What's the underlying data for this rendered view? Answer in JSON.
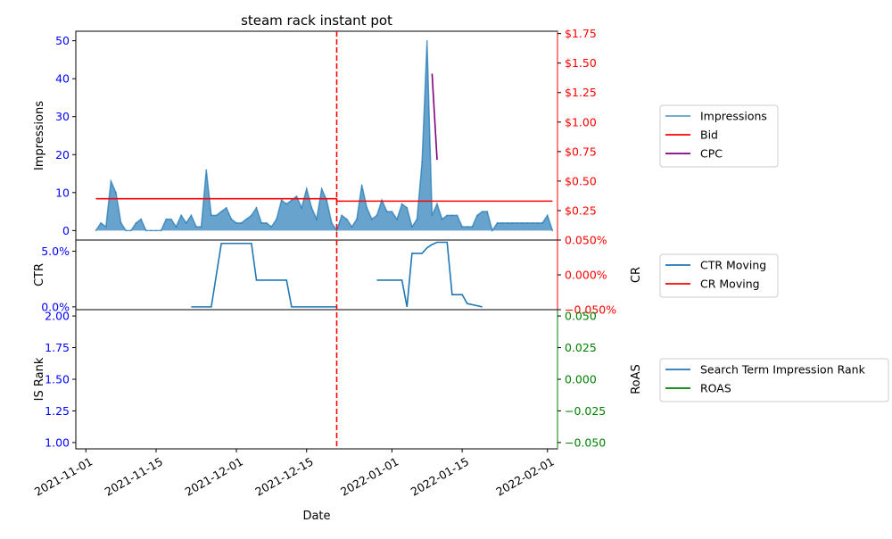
{
  "chart_data": {
    "type": "line",
    "title": "steam rack instant pot",
    "xlabel": "Date",
    "x_tick_labels": [
      "2021-11-01",
      "2021-11-15",
      "2021-12-01",
      "2021-12-15",
      "2022-01-01",
      "2022-01-15",
      "2022-02-01"
    ],
    "x_range": [
      "2021-10-30",
      "2022-02-03"
    ],
    "event_line": {
      "date": "2021-12-21",
      "color": "#ff0000",
      "style": "dashed"
    },
    "colors": {
      "left_axis": "#0000ff",
      "bid": "#ff0000",
      "cpc": "#800080",
      "impressions": "#1f77b4",
      "roas": "#008000"
    },
    "panels": [
      {
        "id": "top",
        "ylabel_left": "Impressions",
        "ylim_left": [
          -2.5,
          52.5
        ],
        "yticks_left": [
          0,
          10,
          20,
          30,
          40,
          50
        ],
        "ytick_labels_left": [
          "0",
          "10",
          "20",
          "30",
          "40",
          "50"
        ],
        "ylim_right": [
          0.0,
          1.77
        ],
        "yticks_right": [
          0.25,
          0.5,
          0.75,
          1.0,
          1.25,
          1.5,
          1.75
        ],
        "ytick_labels_right": [
          "$0.25",
          "$0.50",
          "$0.75",
          "$1.00",
          "$1.25",
          "$1.50",
          "$1.75"
        ],
        "legend": [
          "Impressions",
          "Bid",
          "CPC"
        ],
        "series": [
          {
            "name": "Impressions",
            "axis": "left",
            "style": "area",
            "x": [
              "2021-11-03",
              "2021-11-04",
              "2021-11-05",
              "2021-11-06",
              "2021-11-07",
              "2021-11-08",
              "2021-11-09",
              "2021-11-10",
              "2021-11-11",
              "2021-11-12",
              "2021-11-13",
              "2021-11-14",
              "2021-11-15",
              "2021-11-16",
              "2021-11-17",
              "2021-11-18",
              "2021-11-19",
              "2021-11-20",
              "2021-11-21",
              "2021-11-22",
              "2021-11-23",
              "2021-11-24",
              "2021-11-25",
              "2021-11-26",
              "2021-11-27",
              "2021-11-28",
              "2021-11-29",
              "2021-11-30",
              "2021-12-01",
              "2021-12-02",
              "2021-12-03",
              "2021-12-04",
              "2021-12-05",
              "2021-12-06",
              "2021-12-07",
              "2021-12-08",
              "2021-12-09",
              "2021-12-10",
              "2021-12-11",
              "2021-12-12",
              "2021-12-13",
              "2021-12-14",
              "2021-12-15",
              "2021-12-16",
              "2021-12-17",
              "2021-12-18",
              "2021-12-19",
              "2021-12-20",
              "2021-12-21",
              "2021-12-22",
              "2021-12-23",
              "2021-12-24",
              "2021-12-25",
              "2021-12-26",
              "2021-12-27",
              "2021-12-28",
              "2021-12-29",
              "2021-12-30",
              "2021-12-31",
              "2022-01-01",
              "2022-01-02",
              "2022-01-03",
              "2022-01-04",
              "2022-01-05",
              "2022-01-06",
              "2022-01-07",
              "2022-01-08",
              "2022-01-09",
              "2022-01-10",
              "2022-01-11",
              "2022-01-12",
              "2022-01-13",
              "2022-01-14",
              "2022-01-15",
              "2022-01-16",
              "2022-01-17",
              "2022-01-18",
              "2022-01-19",
              "2022-01-20",
              "2022-01-21",
              "2022-01-22",
              "2022-01-23",
              "2022-01-24",
              "2022-01-25",
              "2022-01-26",
              "2022-01-27",
              "2022-01-28",
              "2022-01-29",
              "2022-01-30",
              "2022-01-31",
              "2022-02-01",
              "2022-02-02"
            ],
            "y": [
              0,
              2,
              1,
              13,
              10,
              2,
              0,
              0,
              2,
              3,
              0,
              0,
              0,
              0,
              3,
              3,
              1,
              4,
              2,
              4,
              1,
              1,
              16,
              4,
              4,
              5,
              6,
              3,
              2,
              2,
              3,
              4,
              6,
              2,
              2,
              1,
              3,
              8,
              7,
              8,
              9,
              6,
              11,
              6,
              3,
              11,
              8,
              2,
              0,
              4,
              3,
              1,
              3,
              12,
              6,
              3,
              4,
              8,
              5,
              5,
              3,
              7,
              6,
              1,
              3,
              18,
              50,
              4,
              7,
              3,
              4,
              4,
              4,
              1,
              1,
              1,
              4,
              5,
              5,
              0,
              2,
              2,
              2,
              2,
              2,
              2,
              2,
              2,
              2,
              2,
              4,
              0
            ]
          },
          {
            "name": "Bid",
            "axis": "right",
            "style": "step",
            "x": [
              "2021-11-03",
              "2021-12-21",
              "2021-12-21",
              "2022-02-02"
            ],
            "y": [
              0.35,
              0.35,
              0.33,
              0.33
            ]
          },
          {
            "name": "CPC",
            "axis": "right",
            "x": [
              "2022-01-09",
              "2022-01-10"
            ],
            "y": [
              1.41,
              0.68
            ]
          }
        ]
      },
      {
        "id": "middle",
        "ylabel_left": "CTR",
        "ylabel_right": "CR",
        "ylim_left": [
          -0.0025,
          0.06
        ],
        "yticks_left": [
          0,
          0.05
        ],
        "ytick_labels_left": [
          "0.0%",
          "5.0%"
        ],
        "ylim_right": [
          -0.05,
          0.05
        ],
        "yticks_right": [
          -0.05,
          0.0,
          0.05
        ],
        "ytick_labels_right": [
          "−0.050%",
          "0.000%",
          "0.050%"
        ],
        "legend": [
          "CTR Moving",
          "CR Moving"
        ],
        "series": [
          {
            "name": "CTR Moving",
            "axis": "left",
            "segments": [
              {
                "x": [
                  "2021-11-22",
                  "2021-11-26",
                  "2021-11-28",
                  "2021-12-04",
                  "2021-12-05",
                  "2021-12-11",
                  "2021-12-12",
                  "2021-12-21"
                ],
                "y": [
                  0,
                  0,
                  0.057,
                  0.057,
                  0.024,
                  0.024,
                  0,
                  0
                ]
              },
              {
                "x": [
                  "2021-12-29",
                  "2022-01-03",
                  "2022-01-04",
                  "2022-01-05",
                  "2022-01-07",
                  "2022-01-08",
                  "2022-01-09",
                  "2022-01-10",
                  "2022-01-12",
                  "2022-01-13",
                  "2022-01-14",
                  "2022-01-15",
                  "2022-01-16",
                  "2022-01-19"
                ],
                "y": [
                  0.024,
                  0.024,
                  0,
                  0.048,
                  0.048,
                  0.053,
                  0.056,
                  0.058,
                  0.058,
                  0.011,
                  0.011,
                  0.011,
                  0.003,
                  0
                ]
              }
            ]
          },
          {
            "name": "CR Moving",
            "axis": "right",
            "segments": []
          }
        ]
      },
      {
        "id": "bottom",
        "ylabel_left": "IS Rank",
        "ylabel_right": "RoAS",
        "ylim_left": [
          0.95,
          2.05
        ],
        "yticks_left": [
          1.0,
          1.25,
          1.5,
          1.75,
          2.0
        ],
        "ytick_labels_left": [
          "1.00",
          "1.25",
          "1.50",
          "1.75",
          "2.00"
        ],
        "ylim_right": [
          -0.055,
          0.055
        ],
        "yticks_right": [
          -0.05,
          -0.025,
          0.0,
          0.025,
          0.05
        ],
        "ytick_labels_right": [
          "−0.050",
          "−0.025",
          "0.000",
          "0.025",
          "0.050"
        ],
        "legend": [
          "Search Term Impression Rank",
          "ROAS"
        ],
        "series": [
          {
            "name": "Search Term Impression Rank",
            "axis": "left",
            "segments": []
          },
          {
            "name": "ROAS",
            "axis": "right",
            "segments": []
          }
        ]
      }
    ]
  }
}
